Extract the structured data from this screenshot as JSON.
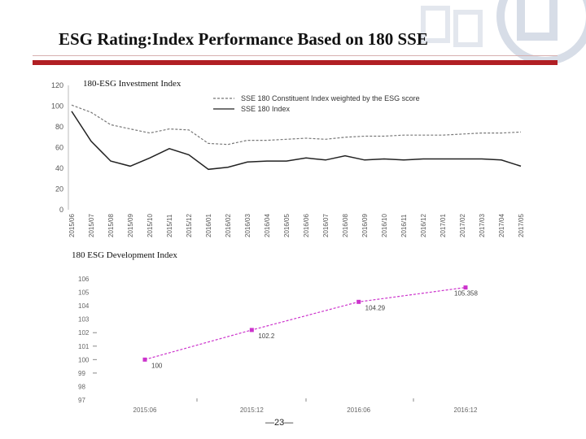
{
  "slide": {
    "title": "ESG Rating:Index Performance Based on 180 SSE",
    "page_number": "—23—",
    "accent_color": "#b11f24"
  },
  "chart_data": [
    {
      "type": "line",
      "title": "180-ESG Investment Index",
      "ylim": [
        0,
        120
      ],
      "yticks": [
        0,
        20,
        40,
        60,
        80,
        100,
        120
      ],
      "categories": [
        "2015/06",
        "2015/07",
        "2015/08",
        "2015/09",
        "2015/10",
        "2015/11",
        "2015/12",
        "2016/01",
        "2016/02",
        "2016/03",
        "2016/04",
        "2016/05",
        "2016/06",
        "2016/07",
        "2016/08",
        "2016/09",
        "2016/10",
        "2016/11",
        "2016/12",
        "2017/01",
        "2017/02",
        "2017/03",
        "2017/04",
        "2017/05"
      ],
      "legend_position": "top-right",
      "series": [
        {
          "name": "SSE 180 Constituent Index weighted by the ESG score",
          "style": "dashed",
          "color": "#777777",
          "values": [
            101,
            94,
            82,
            78,
            74,
            78,
            77,
            64,
            63,
            67,
            67,
            68,
            69,
            68,
            70,
            71,
            71,
            72,
            72,
            72,
            73,
            74,
            74,
            75
          ]
        },
        {
          "name": "SSE 180 Index",
          "style": "solid",
          "color": "#222222",
          "values": [
            95,
            66,
            47,
            42,
            50,
            59,
            53,
            39,
            41,
            46,
            47,
            47,
            50,
            48,
            52,
            48,
            49,
            48,
            49,
            49,
            49,
            49,
            48,
            42
          ]
        }
      ]
    },
    {
      "type": "line",
      "title": "180  ESG Development Index",
      "ylim": [
        97,
        106
      ],
      "yticks": [
        97,
        98,
        99,
        100,
        101,
        102,
        103,
        104,
        105,
        106
      ],
      "categories": [
        "2015:06",
        "2015:12",
        "2016:06",
        "2016:12"
      ],
      "series": [
        {
          "color": "#cc33cc",
          "style": "dashed",
          "values": [
            100,
            102.2,
            104.29,
            105.358
          ],
          "point_labels": [
            "100",
            "102.2",
            "104.29",
            "105.358"
          ]
        }
      ]
    }
  ]
}
